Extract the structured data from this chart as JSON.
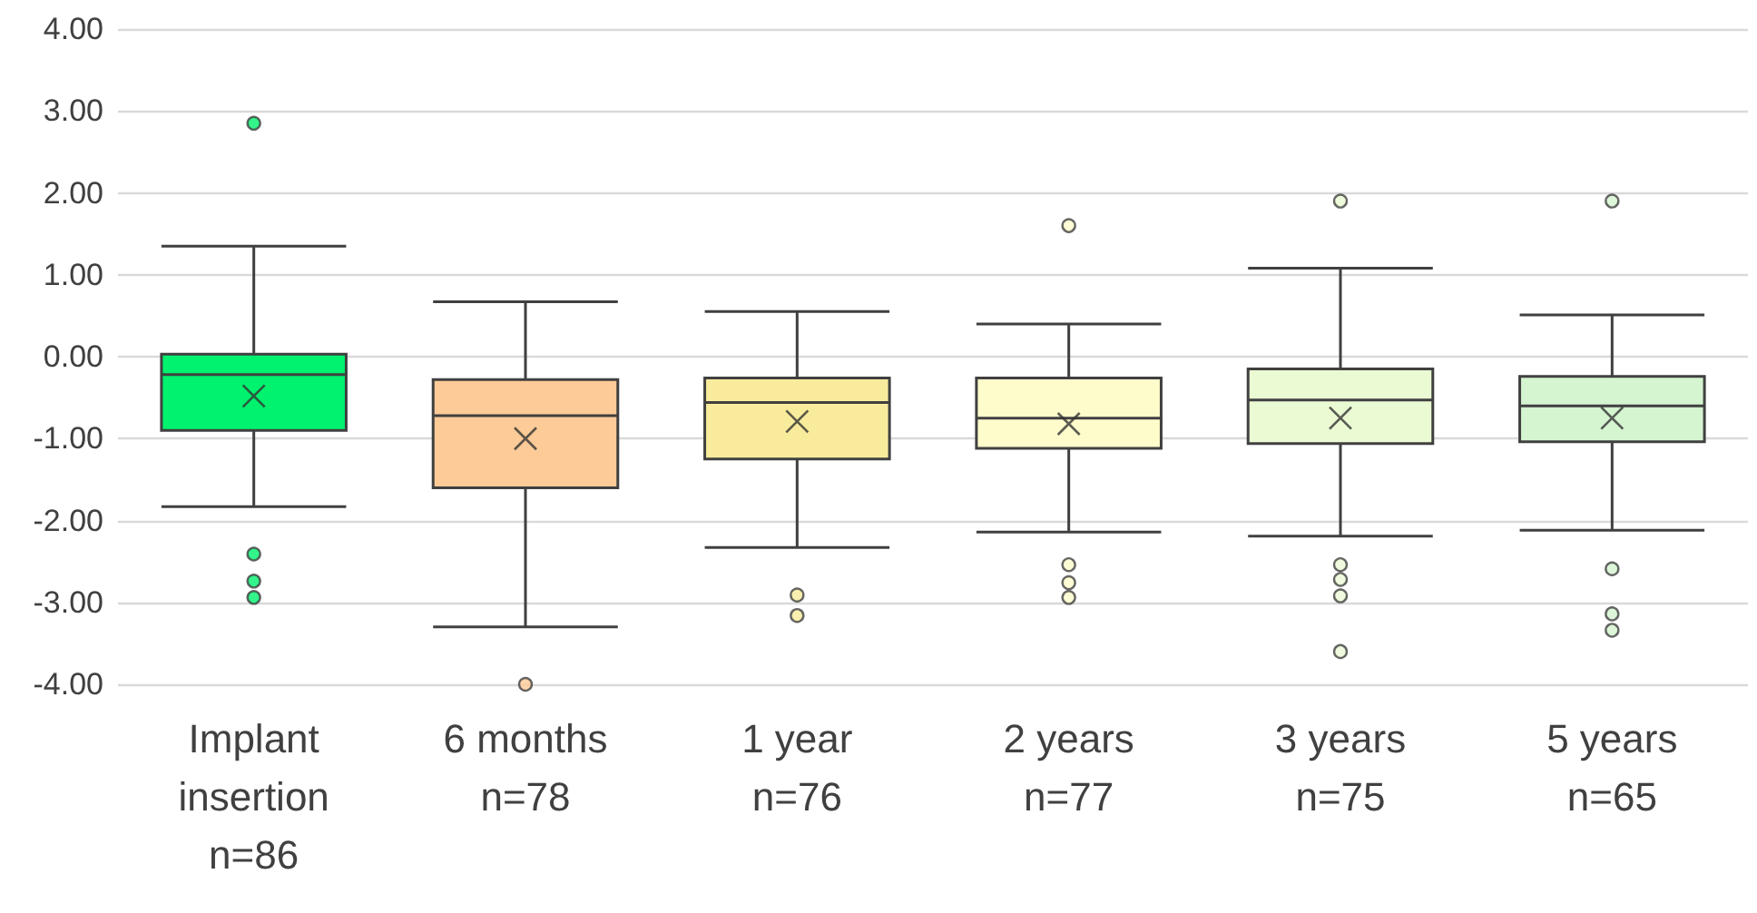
{
  "chart_data": {
    "type": "box",
    "categories": [
      "Implant\ninsertion\nn=86",
      "6 months\nn=78",
      "1 year\nn=76",
      "2 years\nn=77",
      "3 years\nn=75",
      "5 years\nn=65"
    ],
    "colors": [
      "#00f26e",
      "#fdcb98",
      "#f8ec9c",
      "#fffccc",
      "#eafad3",
      "#d5f4d0"
    ],
    "boxes": [
      {
        "low": -1.83,
        "q1": -0.9,
        "median": -0.22,
        "q3": 0.03,
        "high": 1.35,
        "mean": -0.48,
        "outliers": [
          2.85,
          -2.41,
          -2.74,
          -2.94
        ]
      },
      {
        "low": -3.3,
        "q1": -1.6,
        "median": -0.72,
        "q3": -0.28,
        "high": 0.67,
        "mean": -1.0,
        "outliers": [
          -4.0
        ]
      },
      {
        "low": -2.33,
        "q1": -1.25,
        "median": -0.56,
        "q3": -0.26,
        "high": 0.55,
        "mean": -0.79,
        "outliers": [
          -2.91,
          -3.16
        ]
      },
      {
        "low": -2.14,
        "q1": -1.12,
        "median": -0.75,
        "q3": -0.26,
        "high": 0.4,
        "mean": -0.82,
        "outliers": [
          1.6,
          -2.54,
          -2.76,
          -2.94
        ]
      },
      {
        "low": -2.19,
        "q1": -1.06,
        "median": -0.53,
        "q3": -0.15,
        "high": 1.08,
        "mean": -0.75,
        "outliers": [
          1.9,
          -2.54,
          -2.72,
          -2.92,
          -3.6
        ]
      },
      {
        "low": -2.12,
        "q1": -1.04,
        "median": -0.6,
        "q3": -0.24,
        "high": 0.51,
        "mean": -0.75,
        "outliers": [
          1.9,
          -2.59,
          -3.14,
          -3.34
        ]
      }
    ],
    "ylim": [
      -4,
      4
    ],
    "yticks": [
      {
        "value": -4,
        "label": "-4.00"
      },
      {
        "value": -3,
        "label": "-3.00"
      },
      {
        "value": -2,
        "label": "-2.00"
      },
      {
        "value": -1,
        "label": "-1.00"
      },
      {
        "value": 0,
        "label": "0.00"
      },
      {
        "value": 1,
        "label": "1.00"
      },
      {
        "value": 2,
        "label": "2.00"
      },
      {
        "value": 3,
        "label": "3.00"
      },
      {
        "value": 4,
        "label": "4.00"
      }
    ],
    "grid": "y"
  }
}
